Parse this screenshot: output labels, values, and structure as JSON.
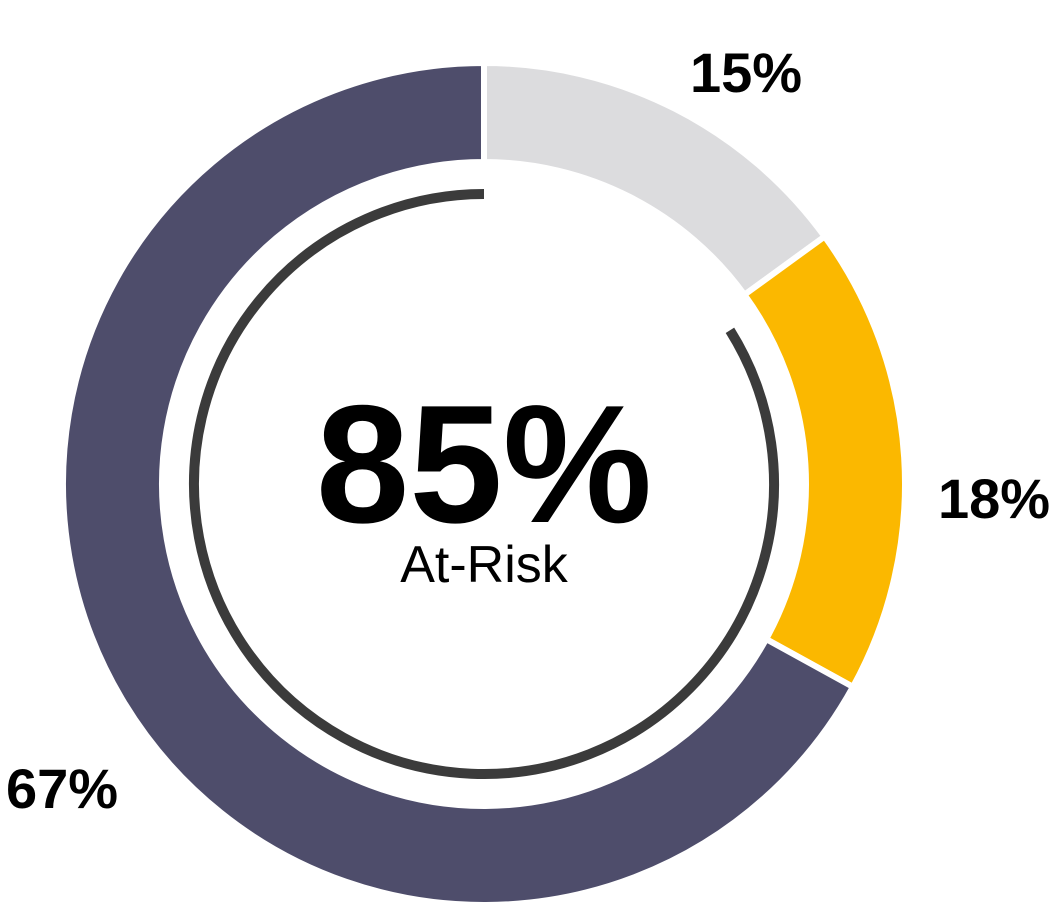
{
  "chart_data": {
    "type": "pie",
    "categories": [
      "",
      "",
      ""
    ],
    "values": [
      15,
      18,
      67
    ],
    "labels": [
      "15%",
      "18%",
      "67%"
    ],
    "colors": [
      "#dcdcde",
      "#fbb800",
      "#4e4d6b"
    ],
    "center_value": "85%",
    "center_caption": "At-Risk",
    "inner_arc_color": "#3b3b3b"
  }
}
